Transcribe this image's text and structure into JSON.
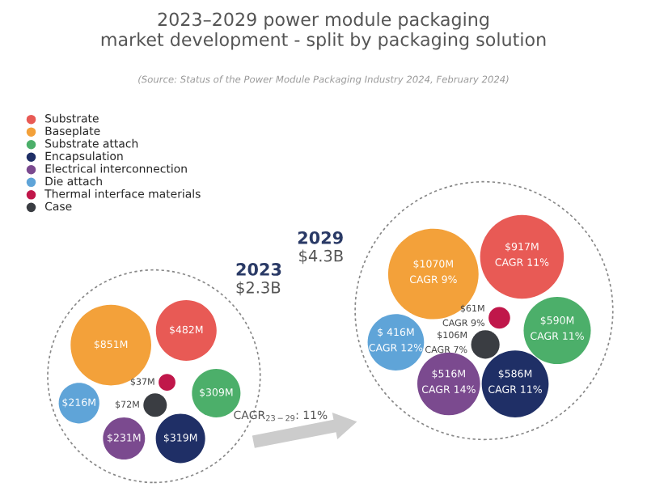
{
  "chart_data": {
    "type": "other",
    "title": "2023–2029 power module packaging\nmarket development - split by packaging solution",
    "subtitle": "(Source: Status of the Power Module Packaging Industry 2024, February 2024)",
    "categories": [
      "2023",
      "2029"
    ],
    "legend": "top left",
    "series": [
      {
        "name": "Substrate",
        "color": "#e85a55",
        "values": [
          482,
          917
        ],
        "value_labels": [
          "$482M",
          "$917M"
        ]
      },
      {
        "name": "Baseplate",
        "color": "#f3a13a",
        "values": [
          851,
          1070
        ],
        "value_labels": [
          "$851M",
          "$1070M"
        ]
      },
      {
        "name": "Substrate attach",
        "color": "#4caf6a",
        "values": [
          309,
          590
        ],
        "value_labels": [
          "$309M",
          "$590M"
        ]
      },
      {
        "name": "Encapsulation",
        "color": "#1f2f66",
        "values": [
          319,
          586
        ],
        "value_labels": [
          "$319M",
          "$586M"
        ]
      },
      {
        "name": "Electrical interconnection",
        "color": "#7b4a8f",
        "values": [
          231,
          516
        ],
        "value_labels": [
          "$231M",
          "$516M"
        ]
      },
      {
        "name": "Die attach",
        "color": "#5fa4d8",
        "values": [
          216,
          416
        ],
        "value_labels": [
          "$216M",
          "$ 416M"
        ]
      },
      {
        "name": "Thermal interface materials",
        "color": "#c0174a",
        "values": [
          37,
          61
        ],
        "value_labels": [
          "$37M",
          "$61M"
        ]
      },
      {
        "name": "Case",
        "color": "#3a3d42",
        "values": [
          72,
          106
        ],
        "value_labels": [
          "$72M",
          "$106M"
        ]
      }
    ],
    "totals": [
      "$2.3B",
      "$4.3B"
    ],
    "annotations": [
      "CAGR$_{23−29}$: 11%",
      "CAGR 11%",
      "CAGR 9%",
      "CAGR 11%",
      "CAGR 11%",
      "CAGR 14%",
      "CAGR 12%",
      "CAGR 9%",
      "CAGR 7%"
    ]
  }
}
